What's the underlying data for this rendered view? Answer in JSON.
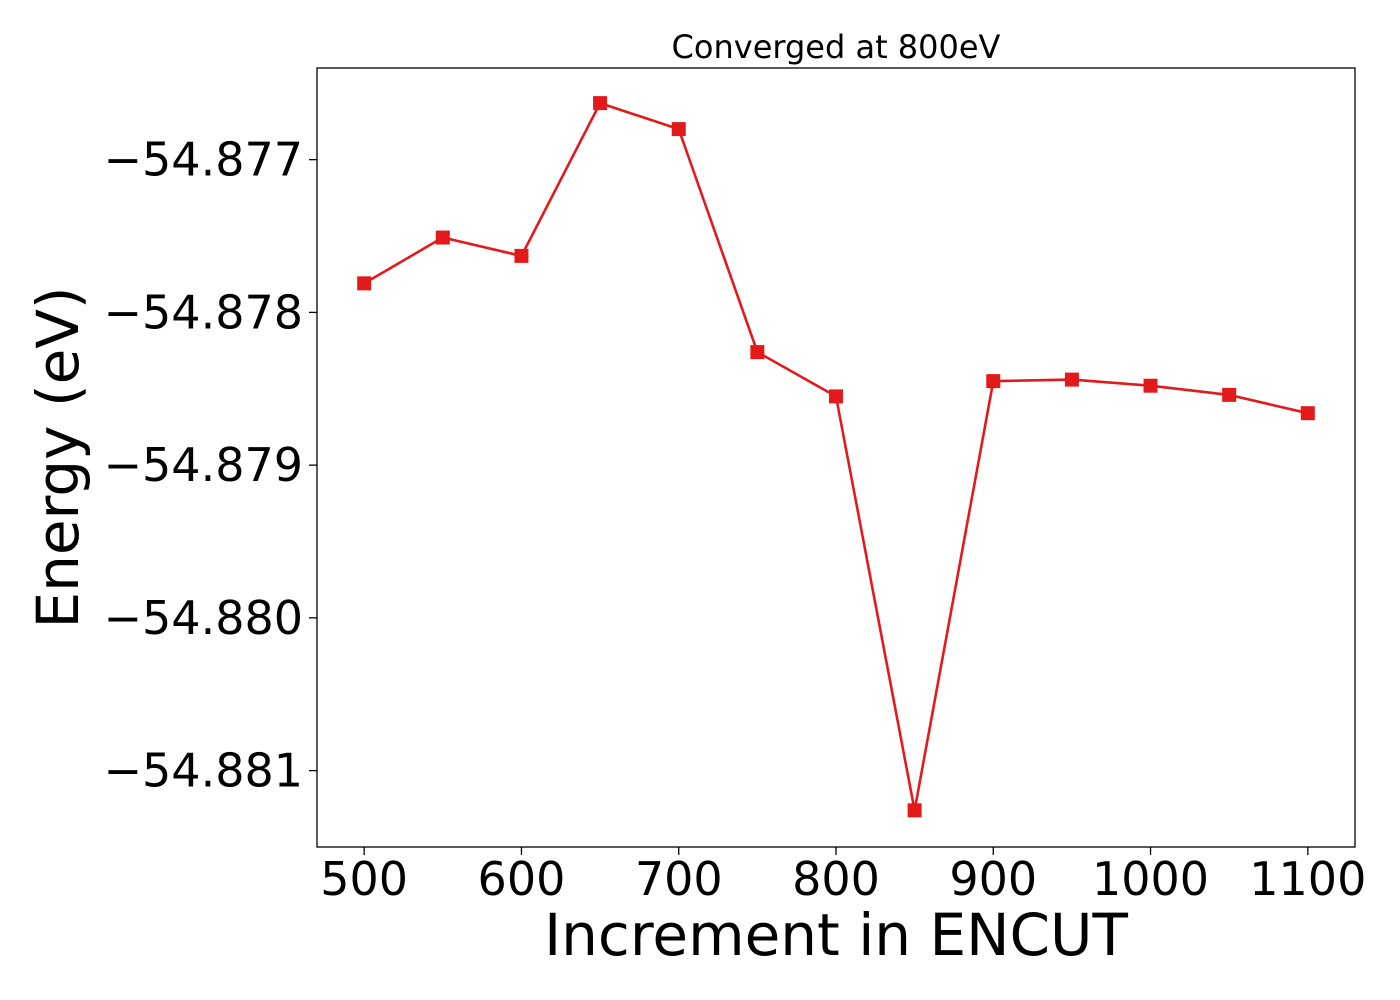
{
  "chart_data": {
    "type": "line",
    "title": "Converged at 800eV",
    "xlabel": "Increment in ENCUT",
    "ylabel": "Energy (eV)",
    "x": [
      500,
      550,
      600,
      650,
      700,
      750,
      800,
      850,
      900,
      950,
      1000,
      1050,
      1100
    ],
    "xlim": [
      470,
      1130
    ],
    "ylim": [
      -54.8815,
      -54.8764
    ],
    "x_ticks": [
      500,
      600,
      700,
      800,
      900,
      1000,
      1100
    ],
    "x_tick_labels": [
      "500",
      "600",
      "700",
      "800",
      "900",
      "1000",
      "1100"
    ],
    "y_ticks": [
      -54.877,
      -54.878,
      -54.879,
      -54.88,
      -54.881
    ],
    "y_tick_labels": [
      "−54.877",
      "−54.878",
      "−54.879",
      "−54.880",
      "−54.881"
    ],
    "grid": false,
    "legend": "none",
    "series": [
      {
        "marker": "square",
        "color": "#e31a1c",
        "values": [
          -54.87781,
          -54.87751,
          -54.87763,
          -54.87663,
          -54.8768,
          -54.87826,
          -54.87855,
          -54.88126,
          -54.87845,
          -54.87844,
          -54.87848,
          -54.87854,
          -54.87866
        ]
      }
    ]
  }
}
